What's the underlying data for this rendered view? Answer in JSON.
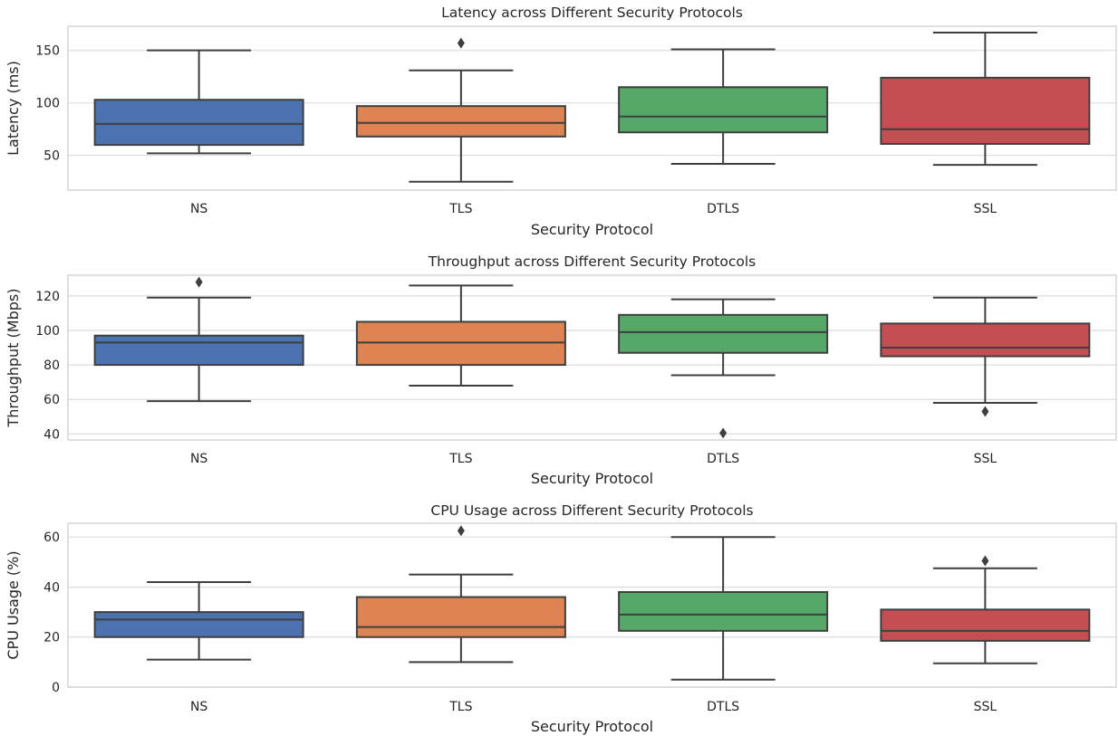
{
  "colors": {
    "NS": "#4c72b0",
    "TLS": "#dd8452",
    "DTLS": "#55a868",
    "SSL": "#c44e52",
    "line": "#3f3f3f",
    "grid": "#dcdcdc",
    "axes_edge": "#cfcfcf"
  },
  "chart_data": [
    {
      "type": "box",
      "title": "Latency across Different Security Protocols",
      "xlabel": "Security Protocol",
      "ylabel": "Latency (ms)",
      "categories": [
        "NS",
        "TLS",
        "DTLS",
        "SSL"
      ],
      "ylim": [
        17,
        173
      ],
      "yticks": [
        50,
        100,
        150
      ],
      "grid": true,
      "boxes": [
        {
          "category": "NS",
          "whislo": 52,
          "q1": 60,
          "med": 80,
          "q3": 103,
          "whishi": 150,
          "fliers": []
        },
        {
          "category": "TLS",
          "whislo": 25,
          "q1": 68,
          "med": 81,
          "q3": 97,
          "whishi": 131,
          "fliers": [
            157
          ]
        },
        {
          "category": "DTLS",
          "whislo": 42,
          "q1": 72,
          "med": 87,
          "q3": 115,
          "whishi": 151,
          "fliers": []
        },
        {
          "category": "SSL",
          "whislo": 41,
          "q1": 61,
          "med": 75,
          "q3": 124,
          "whishi": 167,
          "fliers": []
        }
      ]
    },
    {
      "type": "box",
      "title": "Throughput across Different Security Protocols",
      "xlabel": "Security Protocol",
      "ylabel": "Throughput (Mbps)",
      "categories": [
        "NS",
        "TLS",
        "DTLS",
        "SSL"
      ],
      "ylim": [
        36.5,
        132
      ],
      "yticks": [
        40,
        60,
        80,
        100,
        120
      ],
      "grid": true,
      "boxes": [
        {
          "category": "NS",
          "whislo": 59,
          "q1": 80,
          "med": 93,
          "q3": 97,
          "whishi": 119,
          "fliers": [
            128
          ]
        },
        {
          "category": "TLS",
          "whislo": 68,
          "q1": 80,
          "med": 93,
          "q3": 105,
          "whishi": 126,
          "fliers": []
        },
        {
          "category": "DTLS",
          "whislo": 74,
          "q1": 87,
          "med": 99,
          "q3": 109,
          "whishi": 118,
          "fliers": [
            40.5
          ]
        },
        {
          "category": "SSL",
          "whislo": 58,
          "q1": 85,
          "med": 90,
          "q3": 104,
          "whishi": 119,
          "fliers": [
            53
          ]
        }
      ]
    },
    {
      "type": "box",
      "title": "CPU Usage across Different Security Protocols",
      "xlabel": "Security Protocol",
      "ylabel": "CPU Usage (%)",
      "categories": [
        "NS",
        "TLS",
        "DTLS",
        "SSL"
      ],
      "ylim": [
        0,
        65.5
      ],
      "yticks": [
        0,
        20,
        40,
        60
      ],
      "grid": true,
      "boxes": [
        {
          "category": "NS",
          "whislo": 11,
          "q1": 20,
          "med": 27,
          "q3": 30,
          "whishi": 42,
          "fliers": []
        },
        {
          "category": "TLS",
          "whislo": 10,
          "q1": 20,
          "med": 24,
          "q3": 36,
          "whishi": 45,
          "fliers": [
            62.5
          ]
        },
        {
          "category": "DTLS",
          "whislo": 3,
          "q1": 22.5,
          "med": 29,
          "q3": 38,
          "whishi": 60,
          "fliers": []
        },
        {
          "category": "SSL",
          "whislo": 9.5,
          "q1": 18.5,
          "med": 22.5,
          "q3": 31,
          "whishi": 47.5,
          "fliers": [
            50.5
          ]
        }
      ]
    }
  ]
}
